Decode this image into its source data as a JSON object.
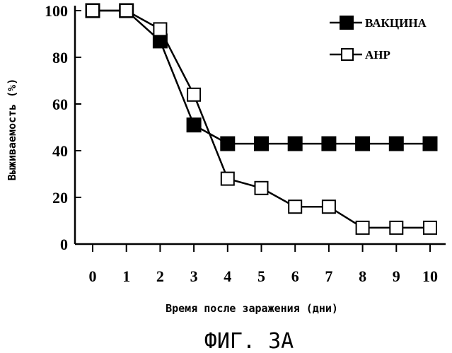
{
  "chart_data": {
    "type": "line",
    "title": "",
    "xlabel": "Время после заражения (дни)",
    "ylabel": "Выживаемость (%)",
    "caption": "ФИГ. 3А",
    "x": [
      0,
      1,
      2,
      3,
      4,
      5,
      6,
      7,
      8,
      9,
      10
    ],
    "xlim": [
      0,
      10
    ],
    "ylim": [
      0,
      100
    ],
    "yticks": [
      0,
      20,
      40,
      60,
      80,
      100
    ],
    "xticks": [
      0,
      1,
      2,
      3,
      4,
      5,
      6,
      7,
      8,
      9,
      10
    ],
    "grid": false,
    "legend_position": "top-right",
    "series": [
      {
        "name": "ВАКЦИНА",
        "marker": "filled-square",
        "color": "#000000",
        "values": [
          100,
          100,
          87,
          51,
          43,
          43,
          43,
          43,
          43,
          43,
          43
        ]
      },
      {
        "name": "АНР",
        "marker": "open-square",
        "color": "#000000",
        "values": [
          100,
          100,
          92,
          64,
          28,
          24,
          16,
          16,
          7,
          7,
          7
        ]
      }
    ]
  }
}
